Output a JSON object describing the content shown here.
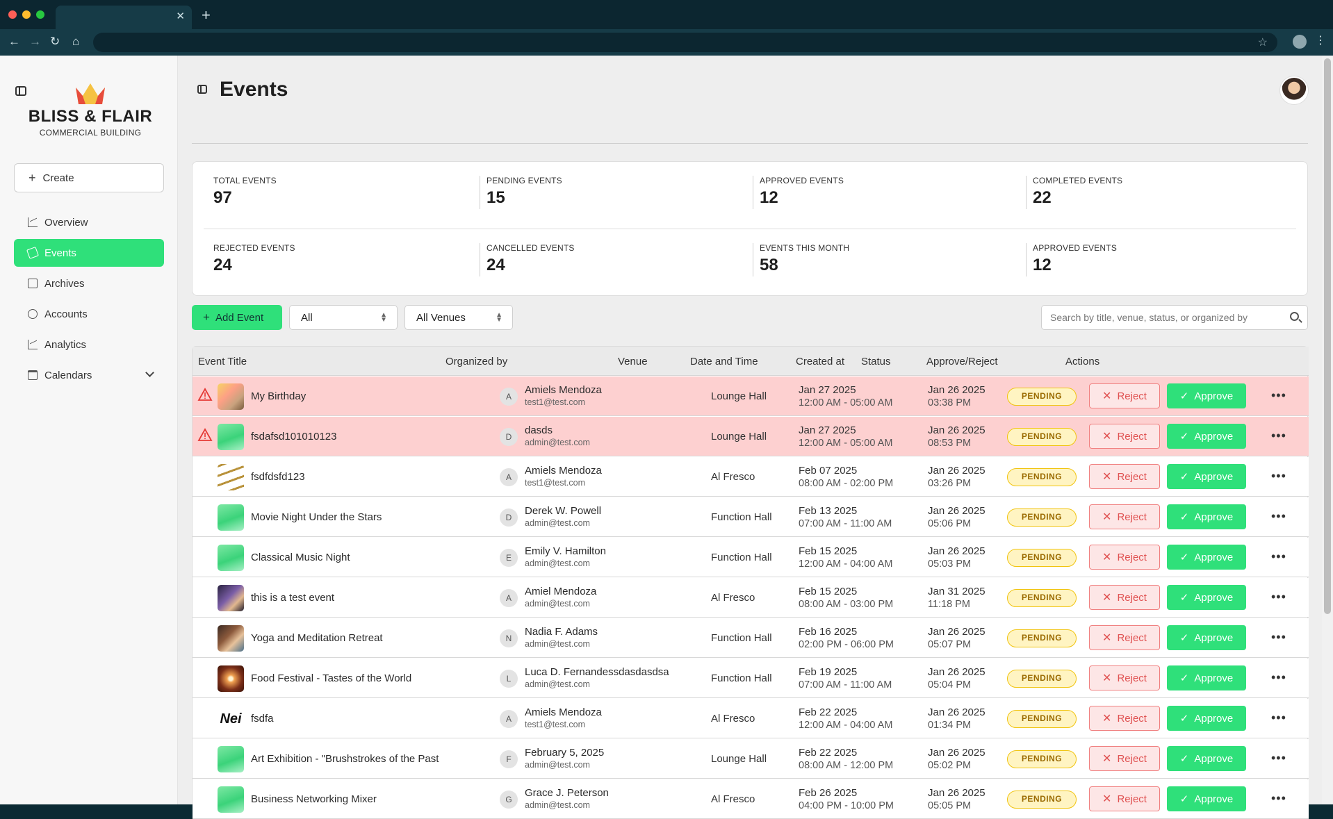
{
  "browser": {
    "tab_title": "",
    "url": ""
  },
  "sidebar": {
    "brand": "BLISS & FLAIR",
    "brand_sub": "COMMERCIAL BUILDING",
    "create_label": "Create",
    "items": [
      {
        "label": "Overview",
        "icon": "chart-line-icon"
      },
      {
        "label": "Events",
        "icon": "party-popper-icon",
        "active": true
      },
      {
        "label": "Archives",
        "icon": "archive-icon"
      },
      {
        "label": "Accounts",
        "icon": "user-circle-icon"
      },
      {
        "label": "Analytics",
        "icon": "chart-line-icon"
      },
      {
        "label": "Calendars",
        "icon": "calendar-icon",
        "expandable": true
      }
    ]
  },
  "header": {
    "title": "Events"
  },
  "stats": [
    {
      "label": "TOTAL EVENTS",
      "value": "97"
    },
    {
      "label": "PENDING EVENTS",
      "value": "15"
    },
    {
      "label": "APPROVED EVENTS",
      "value": "12"
    },
    {
      "label": "COMPLETED EVENTS",
      "value": "22"
    },
    {
      "label": "REJECTED EVENTS",
      "value": "24"
    },
    {
      "label": "CANCELLED EVENTS",
      "value": "24"
    },
    {
      "label": "EVENTS THIS MONTH",
      "value": "58"
    },
    {
      "label": "APPROVED EVENTS",
      "value": "12"
    }
  ],
  "filters": {
    "add_label": "Add Event",
    "status_value": "All",
    "venue_value": "All Venues",
    "search_placeholder": "Search by title, venue, status, or organized by"
  },
  "table": {
    "columns": [
      "Event Title",
      "Organized by",
      "Venue",
      "Date and Time",
      "Created at",
      "Status",
      "Approve/Reject",
      "Actions"
    ],
    "reject_label": "Reject",
    "approve_label": "Approve",
    "rows": [
      {
        "title": "My Birthday",
        "org_initial": "A",
        "org_name": "Amiels Mendoza",
        "org_email": "test1@test.com",
        "venue": "Lounge Hall",
        "date": "Jan 27 2025",
        "time": "12:00 AM - 05:00 AM",
        "created_date": "Jan 26 2025",
        "created_time": "03:38 PM",
        "status": "PENDING",
        "flagged": true,
        "thumb": "photo-party"
      },
      {
        "title": "fsdafsd101010123",
        "org_initial": "D",
        "org_name": "dasds",
        "org_email": "admin@test.com",
        "venue": "Lounge Hall",
        "date": "Jan 27 2025",
        "time": "12:00 AM - 05:00 AM",
        "created_date": "Jan 26 2025",
        "created_time": "08:53 PM",
        "status": "PENDING",
        "flagged": true,
        "thumb": "gradient"
      },
      {
        "title": "fsdfdsfd123",
        "org_initial": "A",
        "org_name": "Amiels Mendoza",
        "org_email": "test1@test.com",
        "venue": "Al Fresco",
        "date": "Feb 07 2025",
        "time": "08:00 AM - 02:00 PM",
        "created_date": "Jan 26 2025",
        "created_time": "03:26 PM",
        "status": "PENDING",
        "flagged": false,
        "thumb": "stairs"
      },
      {
        "title": "Movie Night Under the Stars",
        "org_initial": "D",
        "org_name": "Derek W. Powell",
        "org_email": "admin@test.com",
        "venue": "Function Hall",
        "date": "Feb 13 2025",
        "time": "07:00 AM - 11:00 AM",
        "created_date": "Jan 26 2025",
        "created_time": "05:06 PM",
        "status": "PENDING",
        "flagged": false,
        "thumb": "gradient"
      },
      {
        "title": "Classical Music Night",
        "org_initial": "E",
        "org_name": "Emily V. Hamilton",
        "org_email": "admin@test.com",
        "venue": "Function Hall",
        "date": "Feb 15 2025",
        "time": "12:00 AM - 04:00 AM",
        "created_date": "Jan 26 2025",
        "created_time": "05:03 PM",
        "status": "PENDING",
        "flagged": false,
        "thumb": "gradient"
      },
      {
        "title": "this is a test event",
        "org_initial": "A",
        "org_name": "Amiel Mendoza",
        "org_email": "admin@test.com",
        "venue": "Al Fresco",
        "date": "Feb 15 2025",
        "time": "08:00 AM - 03:00 PM",
        "created_date": "Jan 31 2025",
        "created_time": "11:18 PM",
        "status": "PENDING",
        "flagged": false,
        "thumb": "portrait"
      },
      {
        "title": "Yoga and Meditation Retreat",
        "org_initial": "N",
        "org_name": "Nadia F. Adams",
        "org_email": "admin@test.com",
        "venue": "Function Hall",
        "date": "Feb 16 2025",
        "time": "02:00 PM - 06:00 PM",
        "created_date": "Jan 26 2025",
        "created_time": "05:07 PM",
        "status": "PENDING",
        "flagged": false,
        "thumb": "anime"
      },
      {
        "title": "Food Festival - Tastes of the World",
        "org_initial": "L",
        "org_name": "Luca D. Fernandessdasdasdsa",
        "org_email": "admin@test.com",
        "venue": "Function Hall",
        "date": "Feb 19 2025",
        "time": "07:00 AM - 11:00 AM",
        "created_date": "Jan 26 2025",
        "created_time": "05:04 PM",
        "status": "PENDING",
        "flagged": false,
        "thumb": "burst"
      },
      {
        "title": "fsdfa",
        "org_initial": "A",
        "org_name": "Amiels Mendoza",
        "org_email": "test1@test.com",
        "venue": "Al Fresco",
        "date": "Feb 22 2025",
        "time": "12:00 AM - 04:00 AM",
        "created_date": "Jan 26 2025",
        "created_time": "01:34 PM",
        "status": "PENDING",
        "flagged": false,
        "thumb": "wordmark",
        "thumb_text": "Nei"
      },
      {
        "title": "Art Exhibition - \"Brushstrokes of the Past",
        "org_initial": "F",
        "org_name": "February 5, 2025",
        "org_email": "admin@test.com",
        "venue": "Lounge Hall",
        "date": "Feb 22 2025",
        "time": "08:00 AM - 12:00 PM",
        "created_date": "Jan 26 2025",
        "created_time": "05:02 PM",
        "status": "PENDING",
        "flagged": false,
        "thumb": "gradient"
      },
      {
        "title": "Business Networking Mixer",
        "org_initial": "G",
        "org_name": "Grace J. Peterson",
        "org_email": "admin@test.com",
        "venue": "Al Fresco",
        "date": "Feb 26 2025",
        "time": "04:00 PM - 10:00 PM",
        "created_date": "Jan 26 2025",
        "created_time": "05:05 PM",
        "status": "PENDING",
        "flagged": false,
        "thumb": "gradient"
      }
    ]
  }
}
